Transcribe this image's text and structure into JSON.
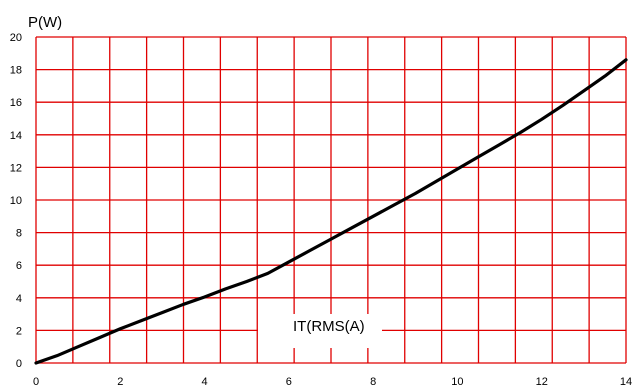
{
  "chart_data": {
    "type": "line",
    "title": "",
    "ylabel": "P(W)",
    "xlabel": "IT(RMS(A)",
    "xlim": [
      0,
      14
    ],
    "ylim": [
      0,
      20
    ],
    "x_ticks": [
      0,
      2,
      4,
      6,
      8,
      10,
      12,
      14
    ],
    "y_ticks": [
      0,
      2,
      4,
      6,
      8,
      10,
      12,
      14,
      16,
      18,
      20
    ],
    "x_minor_step": 0.875,
    "y_minor_step": 2,
    "grid": true,
    "colors": {
      "grid": "#e00000",
      "series": "#000000",
      "background": "#ffffff"
    },
    "series": [
      {
        "x": [
          0,
          0.5,
          1,
          1.5,
          2,
          2.5,
          3,
          3.5,
          4,
          4.5,
          5,
          5.5,
          6,
          6.5,
          7,
          7.5,
          8,
          8.5,
          9,
          9.5,
          10,
          10.5,
          11,
          11.5,
          12,
          12.5,
          13,
          13.5,
          14
        ],
        "y": [
          0,
          0.45,
          1.0,
          1.55,
          2.1,
          2.6,
          3.1,
          3.6,
          4.05,
          4.55,
          5.0,
          5.5,
          6.2,
          6.9,
          7.6,
          8.3,
          9.0,
          9.7,
          10.4,
          11.15,
          11.9,
          12.65,
          13.4,
          14.15,
          14.95,
          15.8,
          16.7,
          17.6,
          18.6
        ]
      }
    ]
  }
}
